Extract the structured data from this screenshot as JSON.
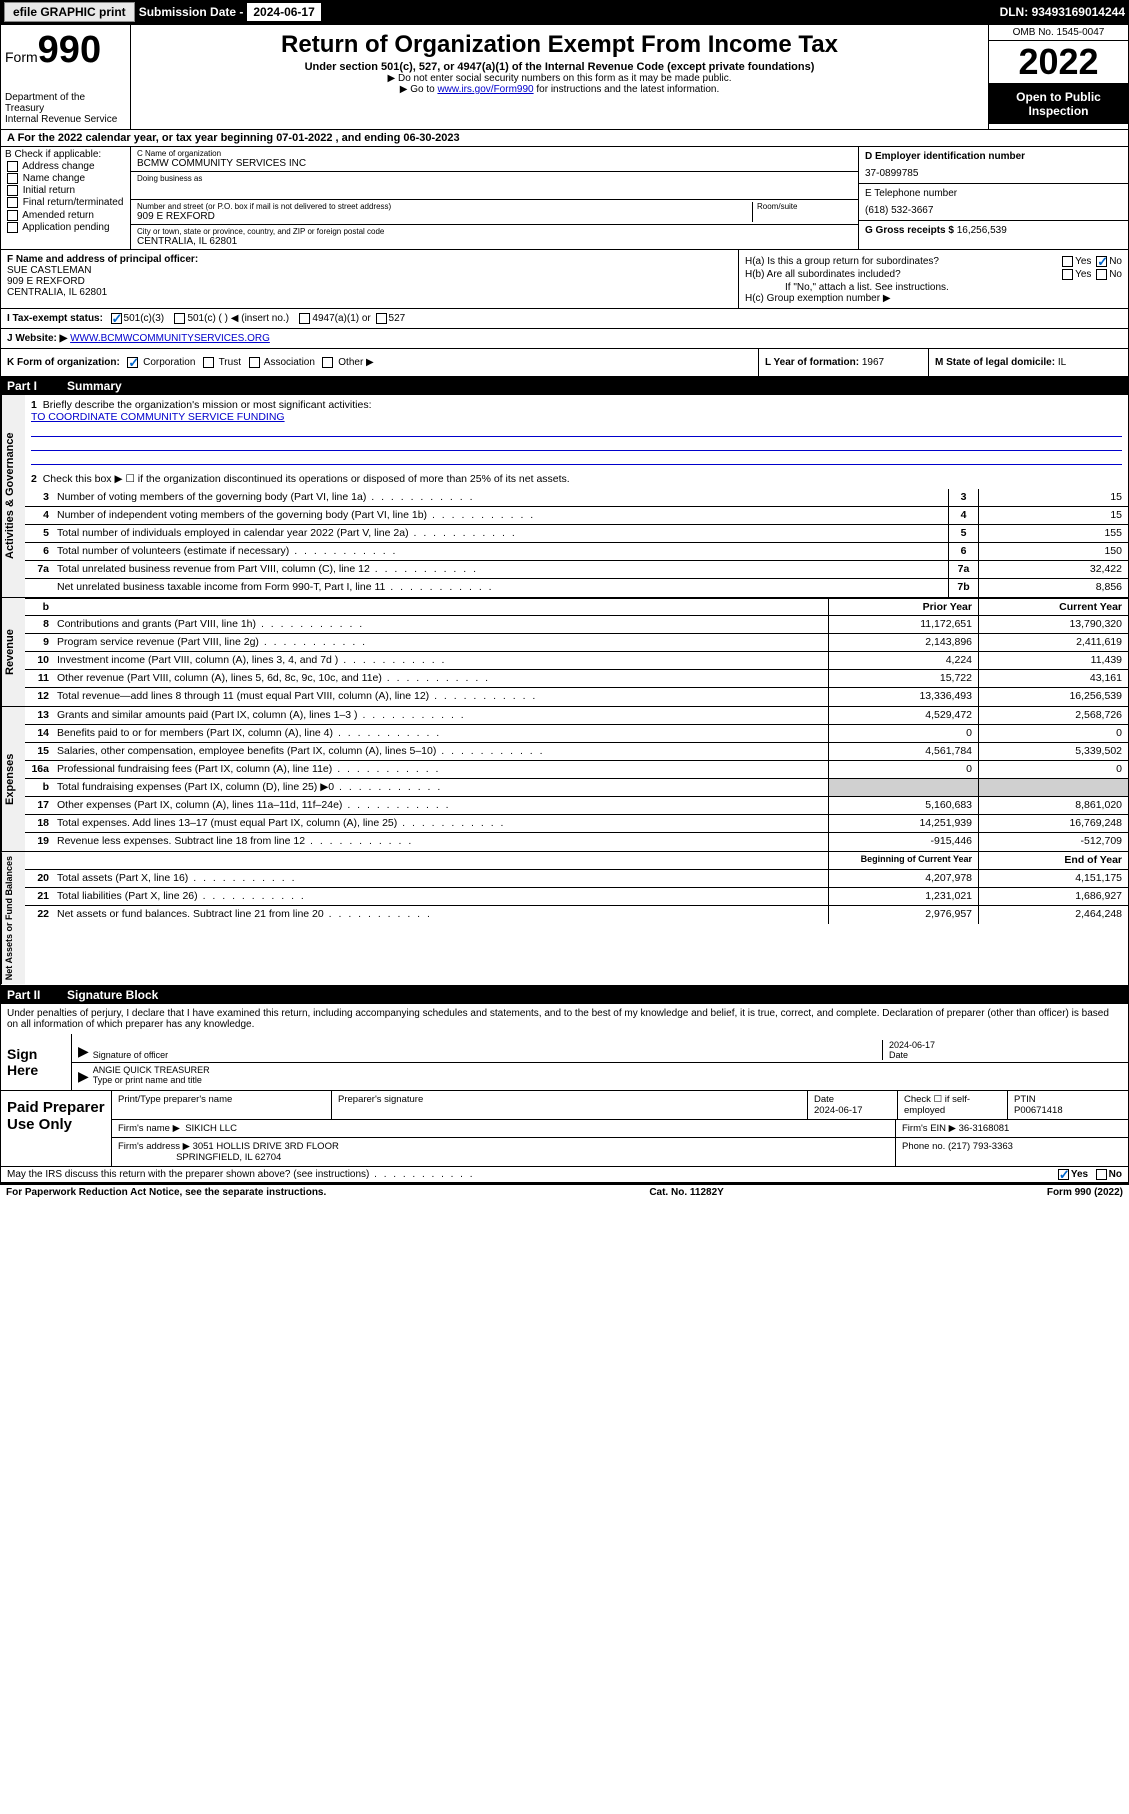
{
  "topbar": {
    "efile": "efile GRAPHIC print",
    "submission_label": "Submission Date - ",
    "submission_date": "2024-06-17",
    "dln_label": "DLN: ",
    "dln": "93493169014244"
  },
  "header": {
    "form_prefix": "Form",
    "form_num": "990",
    "dept": "Department of the Treasury",
    "irs": "Internal Revenue Service",
    "title": "Return of Organization Exempt From Income Tax",
    "subtitle": "Under section 501(c), 527, or 4947(a)(1) of the Internal Revenue Code (except private foundations)",
    "note1": "▶ Do not enter social security numbers on this form as it may be made public.",
    "note2_pre": "▶ Go to ",
    "note2_link": "www.irs.gov/Form990",
    "note2_post": " for instructions and the latest information.",
    "omb": "OMB No. 1545-0047",
    "year": "2022",
    "open_pub": "Open to Public Inspection"
  },
  "rowA": "A For the 2022 calendar year, or tax year beginning 07-01-2022   , and ending 06-30-2023",
  "colB": {
    "title": "B Check if applicable:",
    "opts": [
      "Address change",
      "Name change",
      "Initial return",
      "Final return/terminated",
      "Amended return",
      "Application pending"
    ]
  },
  "colC": {
    "name_lbl": "C Name of organization",
    "name": "BCMW COMMUNITY SERVICES INC",
    "dba_lbl": "Doing business as",
    "addr_lbl": "Number and street (or P.O. box if mail is not delivered to street address)",
    "room_lbl": "Room/suite",
    "addr": "909 E REXFORD",
    "city_lbl": "City or town, state or province, country, and ZIP or foreign postal code",
    "city": "CENTRALIA, IL  62801"
  },
  "colD": {
    "ein_lbl": "D Employer identification number",
    "ein": "37-0899785",
    "tel_lbl": "E Telephone number",
    "tel": "(618) 532-3667",
    "gross_lbl": "G Gross receipts $ ",
    "gross": "16,256,539"
  },
  "rowF": {
    "lbl": "F  Name and address of principal officer:",
    "name": "SUE CASTLEMAN",
    "addr1": "909 E REXFORD",
    "addr2": "CENTRALIA, IL  62801"
  },
  "rowH": {
    "ha": "H(a)  Is this a group return for subordinates?",
    "hb": "H(b)  Are all subordinates included?",
    "hb_note": "If \"No,\" attach a list. See instructions.",
    "hc": "H(c)  Group exemption number ▶",
    "yes": "Yes",
    "no": "No"
  },
  "rowI": {
    "lbl": "I   Tax-exempt status:",
    "o1": "501(c)(3)",
    "o2": "501(c) (  ) ◀ (insert no.)",
    "o3": "4947(a)(1) or",
    "o4": "527"
  },
  "rowJ": {
    "lbl": "J   Website: ▶ ",
    "url": "WWW.BCMWCOMMUNITYSERVICES.ORG"
  },
  "rowK": {
    "lbl": "K Form of organization:",
    "corp": "Corporation",
    "trust": "Trust",
    "assoc": "Association",
    "other": "Other ▶"
  },
  "rowL": {
    "lbl": "L Year of formation: ",
    "val": "1967"
  },
  "rowM": {
    "lbl": "M State of legal domicile: ",
    "val": "IL"
  },
  "part1": {
    "tag": "Part I",
    "title": "Summary"
  },
  "summary": {
    "l1": "Briefly describe the organization's mission or most significant activities:",
    "mission": "TO COORDINATE COMMUNITY SERVICE FUNDING",
    "l2": "Check this box ▶ ☐  if the organization discontinued its operations or disposed of more than 25% of its net assets."
  },
  "lines_gov": [
    {
      "n": "3",
      "d": "Number of voting members of the governing body (Part VI, line 1a)",
      "box": "3",
      "v": "15"
    },
    {
      "n": "4",
      "d": "Number of independent voting members of the governing body (Part VI, line 1b)",
      "box": "4",
      "v": "15"
    },
    {
      "n": "5",
      "d": "Total number of individuals employed in calendar year 2022 (Part V, line 2a)",
      "box": "5",
      "v": "155"
    },
    {
      "n": "6",
      "d": "Total number of volunteers (estimate if necessary)",
      "box": "6",
      "v": "150"
    },
    {
      "n": "7a",
      "d": "Total unrelated business revenue from Part VIII, column (C), line 12",
      "box": "7a",
      "v": "32,422"
    },
    {
      "n": "",
      "d": "Net unrelated business taxable income from Form 990-T, Part I, line 11",
      "box": "7b",
      "v": "8,856"
    }
  ],
  "col_hdrs": {
    "prior": "Prior Year",
    "current": "Current Year",
    "beg": "Beginning of Current Year",
    "end": "End of Year"
  },
  "lines_rev": [
    {
      "n": "8",
      "d": "Contributions and grants (Part VIII, line 1h)",
      "p": "11,172,651",
      "c": "13,790,320"
    },
    {
      "n": "9",
      "d": "Program service revenue (Part VIII, line 2g)",
      "p": "2,143,896",
      "c": "2,411,619"
    },
    {
      "n": "10",
      "d": "Investment income (Part VIII, column (A), lines 3, 4, and 7d )",
      "p": "4,224",
      "c": "11,439"
    },
    {
      "n": "11",
      "d": "Other revenue (Part VIII, column (A), lines 5, 6d, 8c, 9c, 10c, and 11e)",
      "p": "15,722",
      "c": "43,161"
    },
    {
      "n": "12",
      "d": "Total revenue—add lines 8 through 11 (must equal Part VIII, column (A), line 12)",
      "p": "13,336,493",
      "c": "16,256,539"
    }
  ],
  "lines_exp": [
    {
      "n": "13",
      "d": "Grants and similar amounts paid (Part IX, column (A), lines 1–3 )",
      "p": "4,529,472",
      "c": "2,568,726"
    },
    {
      "n": "14",
      "d": "Benefits paid to or for members (Part IX, column (A), line 4)",
      "p": "0",
      "c": "0"
    },
    {
      "n": "15",
      "d": "Salaries, other compensation, employee benefits (Part IX, column (A), lines 5–10)",
      "p": "4,561,784",
      "c": "5,339,502"
    },
    {
      "n": "16a",
      "d": "Professional fundraising fees (Part IX, column (A), line 11e)",
      "p": "0",
      "c": "0"
    },
    {
      "n": "b",
      "d": "Total fundraising expenses (Part IX, column (D), line 25) ▶0",
      "p": "",
      "c": "",
      "grey": true
    },
    {
      "n": "17",
      "d": "Other expenses (Part IX, column (A), lines 11a–11d, 11f–24e)",
      "p": "5,160,683",
      "c": "8,861,020"
    },
    {
      "n": "18",
      "d": "Total expenses. Add lines 13–17 (must equal Part IX, column (A), line 25)",
      "p": "14,251,939",
      "c": "16,769,248"
    },
    {
      "n": "19",
      "d": "Revenue less expenses. Subtract line 18 from line 12",
      "p": "-915,446",
      "c": "-512,709"
    }
  ],
  "lines_net": [
    {
      "n": "20",
      "d": "Total assets (Part X, line 16)",
      "p": "4,207,978",
      "c": "4,151,175"
    },
    {
      "n": "21",
      "d": "Total liabilities (Part X, line 26)",
      "p": "1,231,021",
      "c": "1,686,927"
    },
    {
      "n": "22",
      "d": "Net assets or fund balances. Subtract line 21 from line 20",
      "p": "2,976,957",
      "c": "2,464,248"
    }
  ],
  "part2": {
    "tag": "Part II",
    "title": "Signature Block"
  },
  "sig": {
    "declare": "Under penalties of perjury, I declare that I have examined this return, including accompanying schedules and statements, and to the best of my knowledge and belief, it is true, correct, and complete. Declaration of preparer (other than officer) is based on all information of which preparer has any knowledge.",
    "sign_here": "Sign Here",
    "sig_officer": "Signature of officer",
    "date": "Date",
    "date_val": "2024-06-17",
    "name": "ANGIE QUICK  TREASURER",
    "name_lbl": "Type or print name and title"
  },
  "paid": {
    "title": "Paid Preparer Use Only",
    "print_lbl": "Print/Type preparer's name",
    "prep_sig": "Preparer's signature",
    "date_lbl": "Date",
    "date": "2024-06-17",
    "check_lbl": "Check ☐ if self-employed",
    "ptin_lbl": "PTIN",
    "ptin": "P00671418",
    "firm_name_lbl": "Firm's name   ▶",
    "firm_name": "SIKICH LLC",
    "firm_ein_lbl": "Firm's EIN ▶",
    "firm_ein": "36-3168081",
    "firm_addr_lbl": "Firm's address ▶",
    "firm_addr1": "3051 HOLLIS DRIVE 3RD FLOOR",
    "firm_addr2": "SPRINGFIELD, IL  62704",
    "phone_lbl": "Phone no. ",
    "phone": "(217) 793-3363"
  },
  "bottom": {
    "discuss": "May the IRS discuss this return with the preparer shown above? (see instructions)",
    "yes": "Yes",
    "no": "No"
  },
  "footer": {
    "left": "For Paperwork Reduction Act Notice, see the separate instructions.",
    "mid": "Cat. No. 11282Y",
    "right": "Form 990 (2022)"
  }
}
